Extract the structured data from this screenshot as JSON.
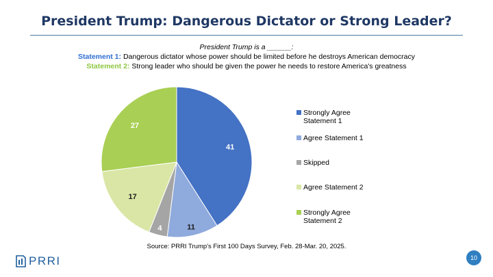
{
  "header": {
    "title": "President Trump: Dangerous Dictator or Strong Leader?",
    "prompt": "President Trump is a ______:",
    "statement1_label": "Statement 1:",
    "statement1_text": "Dangerous dictator whose power should be limited before he destroys American democracy",
    "statement2_label": "Statement 2:",
    "statement2_text": "Strong leader who should be given the power he needs to restore America's greatness"
  },
  "chart_data": {
    "type": "pie",
    "title": "President Trump: Dangerous Dictator or Strong Leader?",
    "start": "12 o'clock, clockwise",
    "slices": [
      {
        "label": "Strongly Agree Statement 1",
        "value": 41,
        "color": "#4472c4"
      },
      {
        "label": "Agree Statement 1",
        "value": 11,
        "color": "#8faadc"
      },
      {
        "label": "Skipped",
        "value": 4,
        "color": "#a5a5a5"
      },
      {
        "label": "Agree Statement 2",
        "value": 17,
        "color": "#dae6a6"
      },
      {
        "label": "Strongly Agree Statement 2",
        "value": 27,
        "color": "#a9cf54"
      }
    ],
    "legend_position": "right",
    "legend": [
      {
        "lines": [
          "Strongly Agree",
          "Statement 1"
        ],
        "color": "#4472c4"
      },
      {
        "lines": [
          "Agree Statement 1"
        ],
        "color": "#8faadc"
      },
      {
        "lines": [
          "Skipped"
        ],
        "color": "#a5a5a5"
      },
      {
        "lines": [
          "Agree Statement 2"
        ],
        "color": "#dae6a6"
      },
      {
        "lines": [
          "Strongly Agree",
          "Statement 2"
        ],
        "color": "#a9cf54"
      }
    ]
  },
  "footer": {
    "source": "Source: PRRI Trump's First 100 Days Survey, Feb. 28-Mar. 20, 2025.",
    "logo_text": "PRRI",
    "page_number": "10"
  }
}
